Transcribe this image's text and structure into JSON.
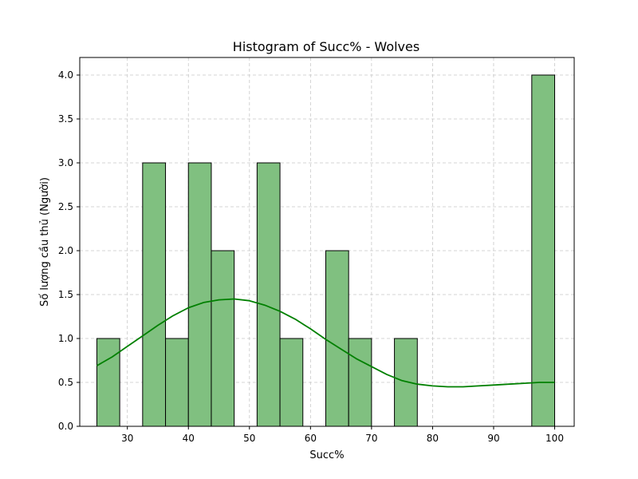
{
  "chart_data": {
    "type": "bar",
    "title": "Histogram of Succ% - Wolves",
    "xlabel": "Succ%",
    "ylabel": "Số lượng cầu thủ (Người)",
    "xlim": [
      22.2,
      103.2
    ],
    "ylim": [
      0,
      4.2
    ],
    "xticks": [
      30,
      40,
      50,
      60,
      70,
      80,
      90,
      100
    ],
    "xtick_labels": [
      "30",
      "40",
      "50",
      "60",
      "70",
      "80",
      "90",
      "100"
    ],
    "yticks": [
      0,
      0.5,
      1,
      1.5,
      2,
      2.5,
      3,
      3.5,
      4
    ],
    "ytick_labels": [
      "0.0",
      "0.5",
      "1.0",
      "1.5",
      "2.0",
      "2.5",
      "3.0",
      "3.5",
      "4.0"
    ],
    "grid": true,
    "bar_color": "#80c080",
    "edge_color": "#000000",
    "kde_color": "#008000",
    "bins": [
      {
        "start": 25.0,
        "end": 28.75,
        "count": 1
      },
      {
        "start": 28.75,
        "end": 32.5,
        "count": 0
      },
      {
        "start": 32.5,
        "end": 36.25,
        "count": 3
      },
      {
        "start": 36.25,
        "end": 40.0,
        "count": 1
      },
      {
        "start": 40.0,
        "end": 43.75,
        "count": 3
      },
      {
        "start": 43.75,
        "end": 47.5,
        "count": 2
      },
      {
        "start": 47.5,
        "end": 51.25,
        "count": 0
      },
      {
        "start": 51.25,
        "end": 55.0,
        "count": 3
      },
      {
        "start": 55.0,
        "end": 58.75,
        "count": 1
      },
      {
        "start": 58.75,
        "end": 62.5,
        "count": 0
      },
      {
        "start": 62.5,
        "end": 66.25,
        "count": 2
      },
      {
        "start": 66.25,
        "end": 70.0,
        "count": 1
      },
      {
        "start": 70.0,
        "end": 73.75,
        "count": 0
      },
      {
        "start": 73.75,
        "end": 77.5,
        "count": 1
      },
      {
        "start": 77.5,
        "end": 81.25,
        "count": 0
      },
      {
        "start": 81.25,
        "end": 85.0,
        "count": 0
      },
      {
        "start": 85.0,
        "end": 88.75,
        "count": 0
      },
      {
        "start": 88.75,
        "end": 92.5,
        "count": 0
      },
      {
        "start": 92.5,
        "end": 96.25,
        "count": 0
      },
      {
        "start": 96.25,
        "end": 100.0,
        "count": 4
      }
    ],
    "kde": {
      "x": [
        25,
        27.5,
        30,
        32.5,
        35,
        37.5,
        40,
        42.5,
        45,
        47.5,
        50,
        52.5,
        55,
        57.5,
        60,
        62.5,
        65,
        67.5,
        70,
        72.5,
        75,
        77.5,
        80,
        82.5,
        85,
        87.5,
        90,
        92.5,
        95,
        97.5,
        100
      ],
      "y": [
        0.69,
        0.79,
        0.91,
        1.03,
        1.15,
        1.26,
        1.35,
        1.41,
        1.44,
        1.45,
        1.43,
        1.38,
        1.31,
        1.22,
        1.11,
        0.99,
        0.88,
        0.77,
        0.68,
        0.59,
        0.52,
        0.48,
        0.46,
        0.45,
        0.45,
        0.46,
        0.47,
        0.48,
        0.49,
        0.5,
        0.5
      ]
    }
  }
}
